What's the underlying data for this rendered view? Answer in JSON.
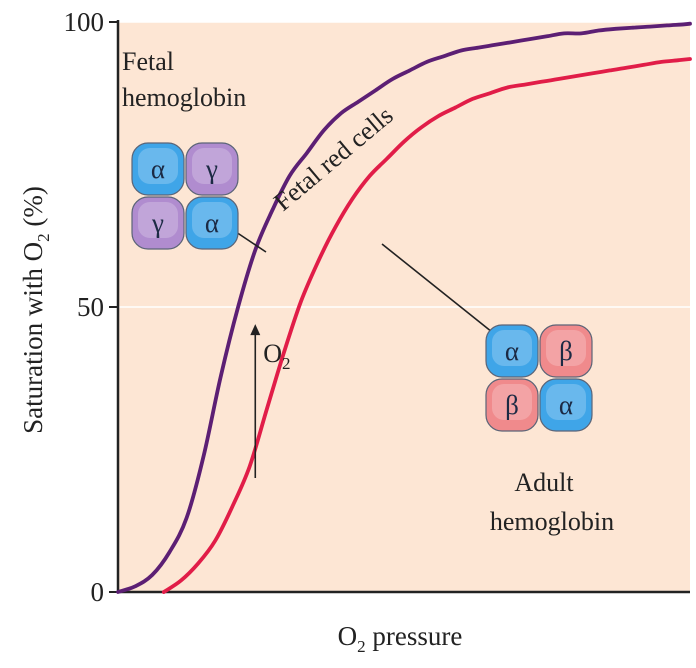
{
  "chart_data": {
    "type": "line",
    "title": "",
    "xlabel": {
      "main": "O",
      "sub": "2",
      "rest": " pressure"
    },
    "ylabel": {
      "main": "Saturation with O",
      "sub": "2",
      "rest": " (%)"
    },
    "xlim": [
      0,
      100
    ],
    "ylim": [
      0,
      100
    ],
    "yticks": [
      "0",
      "50",
      "100"
    ],
    "grid": {
      "y": [
        50,
        100
      ],
      "style": "faint white lines"
    },
    "series": [
      {
        "name": "Fetal red cells",
        "color": "#5c1f74",
        "x": [
          0,
          3,
          6,
          9,
          12,
          15,
          18,
          21,
          24,
          27,
          30,
          33,
          36,
          39,
          42,
          45,
          48,
          51,
          54,
          57,
          60,
          63,
          66,
          69,
          72,
          75,
          78,
          81,
          84,
          87,
          90,
          93,
          96,
          99,
          100
        ],
        "y": [
          0,
          1,
          3,
          7,
          13,
          24,
          38,
          50,
          60,
          67,
          73,
          77,
          81,
          84,
          86,
          88,
          90,
          91.5,
          93,
          94,
          95,
          95.5,
          96,
          96.5,
          97,
          97.5,
          98,
          98,
          98.5,
          98.8,
          99,
          99.2,
          99.4,
          99.6,
          99.7
        ]
      },
      {
        "name": "",
        "color": "#e11d48",
        "x": [
          8,
          11,
          14,
          17,
          20,
          23,
          26,
          29,
          32,
          35,
          38,
          41,
          44,
          47,
          50,
          53,
          56,
          59,
          62,
          65,
          68,
          71,
          74,
          77,
          80,
          83,
          86,
          89,
          92,
          95,
          98,
          100
        ],
        "y": [
          0,
          2,
          5,
          9,
          15,
          22,
          32,
          42,
          51,
          58,
          64,
          69,
          73,
          76,
          79,
          81.5,
          83.5,
          85,
          86.5,
          87.5,
          88.5,
          89,
          89.5,
          90,
          90.5,
          91,
          91.5,
          92,
          92.5,
          93,
          93.3,
          93.5
        ]
      }
    ],
    "annotations": {
      "fetal_label": [
        "Fetal",
        "hemoglobin"
      ],
      "curve_label": "Fetal red cells",
      "adult_label": [
        "Adult",
        "hemoglobin"
      ],
      "o2_arrow": {
        "main": "O",
        "sub": "2",
        "from": [
          24,
          20
        ],
        "to": [
          24,
          47
        ]
      },
      "fetal_subunits": [
        "α",
        "γ",
        "γ",
        "α"
      ],
      "adult_subunits": [
        "α",
        "β",
        "β",
        "α"
      ]
    },
    "colors": {
      "plot_background": "#fde6d4",
      "alpha_subunit": "#3fa5e8",
      "gamma_subunit": "#b08ccf",
      "beta_subunit": "#f08a8c"
    }
  }
}
